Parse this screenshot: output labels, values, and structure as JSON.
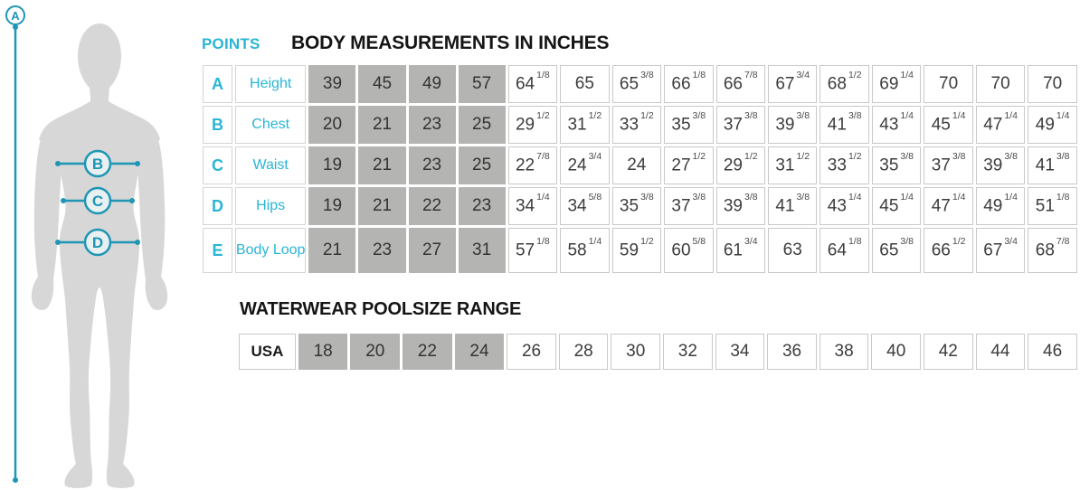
{
  "points_heading": "POINTS",
  "figure": {
    "points": [
      "A",
      "B",
      "C",
      "D"
    ]
  },
  "chart_data": [
    {
      "type": "table",
      "name": "body_measurements",
      "title": "BODY MEASUREMENTS IN INCHES",
      "shaded_value_columns": 4,
      "rows": [
        {
          "point": "A",
          "label": "Height",
          "values": [
            "39",
            "45",
            "49",
            "57",
            "64 1/8",
            "65",
            "65 3/8",
            "66 1/8",
            "66 7/8",
            "67 3/4",
            "68 1/2",
            "69 1/4",
            "70",
            "70",
            "70"
          ]
        },
        {
          "point": "B",
          "label": "Chest",
          "values": [
            "20",
            "21",
            "23",
            "25",
            "29 1/2",
            "31 1/2",
            "33 1/2",
            "35 3/8",
            "37 3/8",
            "39 3/8",
            "41 3/8",
            "43 1/4",
            "45 1/4",
            "47 1/4",
            "49 1/4"
          ]
        },
        {
          "point": "C",
          "label": "Waist",
          "values": [
            "19",
            "21",
            "23",
            "25",
            "22 7/8",
            "24 3/4",
            "24",
            "27 1/2",
            "29 1/2",
            "31 1/2",
            "33 1/2",
            "35 3/8",
            "37 3/8",
            "39 3/8",
            "41 3/8"
          ]
        },
        {
          "point": "D",
          "label": "Hips",
          "values": [
            "19",
            "21",
            "22",
            "23",
            "34 1/4",
            "34 5/8",
            "35 3/8",
            "37 3/8",
            "39 3/8",
            "41 3/8",
            "43 1/4",
            "45 1/4",
            "47 1/4",
            "49 1/4",
            "51 1/8"
          ]
        },
        {
          "point": "E",
          "label": "Body Loop",
          "values": [
            "21",
            "23",
            "27",
            "31",
            "57 1/8",
            "58 1/4",
            "59 1/2",
            "60 5/8",
            "61 3/4",
            "63",
            "64 1/8",
            "65 3/8",
            "66 1/2",
            "67 3/4",
            "68 7/8"
          ]
        }
      ]
    },
    {
      "type": "table",
      "name": "waterwear_poolsize",
      "title": "WATERWEAR POOLSIZE RANGE",
      "shaded_value_columns": 4,
      "rows": [
        {
          "label": "USA",
          "values": [
            "18",
            "20",
            "22",
            "24",
            "26",
            "28",
            "30",
            "32",
            "34",
            "36",
            "38",
            "40",
            "42",
            "44",
            "46"
          ]
        }
      ]
    }
  ],
  "colors": {
    "accent_cyan_text": "#29b5d6",
    "accent_teal_marker": "#1e96b4",
    "shaded_cell": "#b4b4b2",
    "silhouette_gray": "#d7d7d7",
    "cell_border": "#c9c9c9",
    "heading_black": "#151515"
  }
}
